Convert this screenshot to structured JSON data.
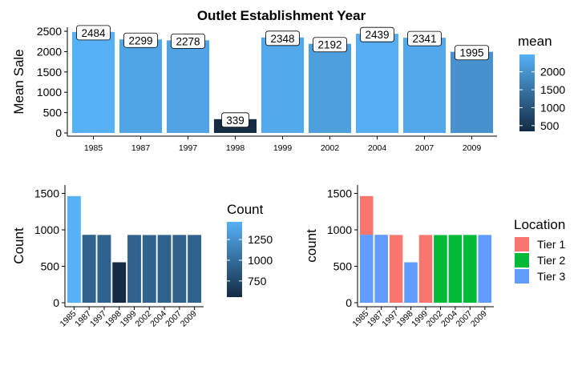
{
  "title": "Outlet Establishment Year",
  "chart_data": [
    {
      "type": "bar",
      "categories": [
        "1985",
        "1987",
        "1997",
        "1998",
        "1999",
        "2002",
        "2004",
        "2007",
        "2009"
      ],
      "values": [
        2484,
        2299,
        2278,
        339,
        2348,
        2192,
        2439,
        2341,
        1995
      ],
      "data_labels": [
        "2484",
        "2299",
        "2278",
        "339",
        "2348",
        "2192",
        "2439",
        "2341",
        "1995"
      ],
      "xlabel": "",
      "ylabel": "Mean Sale",
      "ylim": [
        0,
        2600
      ],
      "yticks": [
        "0",
        "500",
        "1000",
        "1500",
        "2000",
        "2500"
      ],
      "color_legend": {
        "title": "mean",
        "min": 339,
        "max": 2484,
        "ticks": [
          "500",
          "1000",
          "1500",
          "2000"
        ]
      },
      "grid": false
    },
    {
      "type": "bar",
      "categories": [
        "1985",
        "1987",
        "1997",
        "1998",
        "1999",
        "2002",
        "2004",
        "2007",
        "2009"
      ],
      "values": [
        1463,
        932,
        930,
        555,
        930,
        929,
        930,
        930,
        930
      ],
      "xlabel": "",
      "ylabel": "Count",
      "ylim": [
        0,
        1540
      ],
      "yticks": [
        "0",
        "500",
        "1000",
        "1500"
      ],
      "color_legend": {
        "title": "Count",
        "min": 555,
        "max": 1463,
        "ticks": [
          "750",
          "1000",
          "1250"
        ]
      },
      "grid": false
    },
    {
      "type": "bar",
      "stacked": true,
      "categories": [
        "1985",
        "1987",
        "1997",
        "1998",
        "1999",
        "2002",
        "2004",
        "2007",
        "2009"
      ],
      "series": [
        {
          "name": "Tier 1",
          "values": [
            530,
            0,
            930,
            0,
            930,
            0,
            0,
            0,
            0
          ]
        },
        {
          "name": "Tier 2",
          "values": [
            0,
            0,
            0,
            0,
            0,
            929,
            930,
            930,
            0
          ]
        },
        {
          "name": "Tier 3",
          "values": [
            933,
            932,
            0,
            555,
            0,
            0,
            0,
            0,
            930
          ]
        }
      ],
      "xlabel": "",
      "ylabel": "count",
      "ylim": [
        0,
        1540
      ],
      "yticks": [
        "0",
        "500",
        "1000",
        "1500"
      ],
      "legend": {
        "title": "Location",
        "position": "right"
      },
      "grid": false
    }
  ],
  "colors": {
    "gradient_low": "#132B43",
    "gradient_high": "#56B1F7",
    "tier1": "#F8766D",
    "tier2": "#00BA38",
    "tier3": "#619CFF"
  }
}
